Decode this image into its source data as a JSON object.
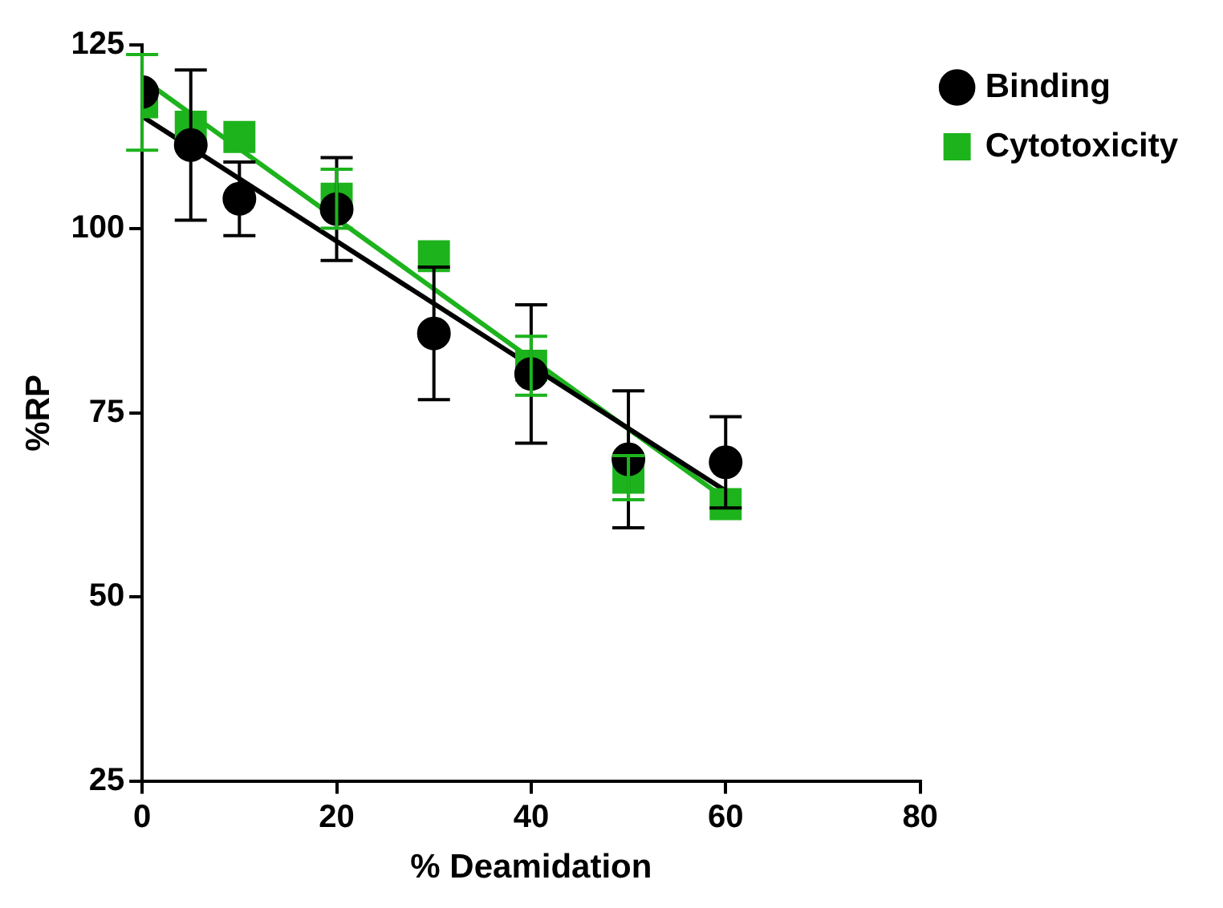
{
  "chart_data": {
    "type": "scatter",
    "xlabel": "% Deamidation",
    "ylabel": "%RP",
    "xlim": [
      0,
      80
    ],
    "xticks": [
      0,
      20,
      40,
      60,
      80
    ],
    "ylim": [
      25,
      125
    ],
    "yticks": [
      25,
      50,
      75,
      100,
      125
    ],
    "grid": false,
    "legend": "top right",
    "series": [
      {
        "name": "Binding",
        "color": "#000000",
        "marker": "circle",
        "x": [
          0,
          5,
          10,
          20,
          30,
          40,
          50,
          60
        ],
        "values": [
          118.6,
          111.4,
          104.1,
          102.7,
          85.8,
          80.3,
          68.7,
          68.3
        ],
        "errors": [
          null,
          10.2,
          5,
          7,
          9,
          9.4,
          9.3,
          6.2
        ]
      },
      {
        "name": "Cytotoxicity",
        "color": "#1db31d",
        "marker": "square",
        "x": [
          0,
          5,
          10,
          20,
          30,
          40,
          50,
          60
        ],
        "values": [
          117.2,
          113.9,
          112.5,
          104.1,
          96.3,
          81.4,
          66.2,
          62.6
        ],
        "errors": [
          6.5,
          null,
          null,
          4,
          null,
          4,
          3,
          null
        ]
      },
      {
        "type": "line",
        "color": "#000000",
        "marker": "none",
        "x": [
          0,
          60
        ],
        "values": [
          115.3,
          64.4
        ]
      },
      {
        "type": "line",
        "color": "#1db31d",
        "marker": "none",
        "x": [
          0,
          60
        ],
        "values": [
          120.4,
          63.3
        ]
      }
    ]
  }
}
